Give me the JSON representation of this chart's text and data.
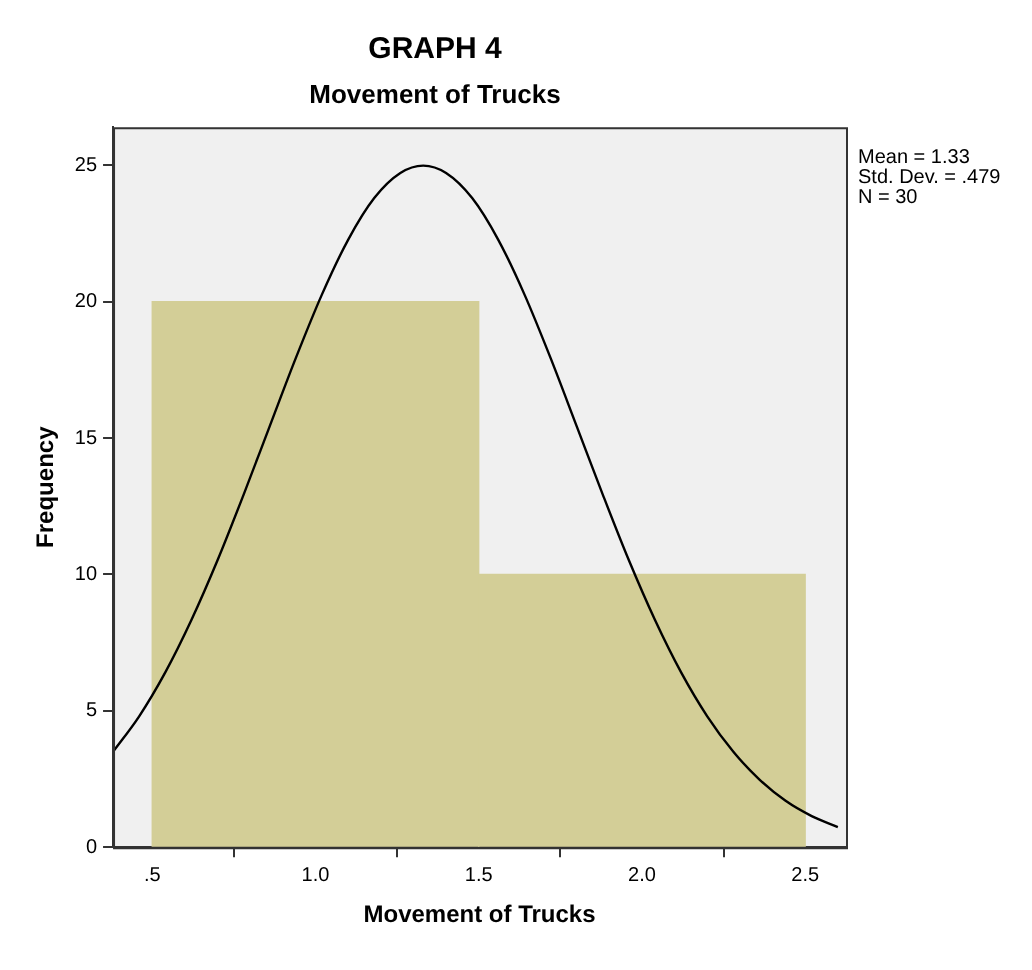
{
  "chart_data": {
    "type": "histogram",
    "title": "GRAPH 4",
    "subtitle": "Movement of Trucks",
    "xlabel": "Movement of Trucks",
    "ylabel": "Frequency",
    "bins": [
      0.5,
      1.5,
      2.5
    ],
    "values": [
      20,
      10
    ],
    "color": "#d3ce97",
    "series": [
      {
        "type": "line",
        "color": "#000000",
        "x": [
          0.38,
          0.46,
          0.54,
          0.62,
          0.7,
          0.78,
          0.86,
          0.94,
          1.02,
          1.1,
          1.18,
          1.26,
          1.33,
          1.4,
          1.48,
          1.56,
          1.64,
          1.72,
          1.8,
          1.88,
          1.96,
          2.04,
          2.12,
          2.2,
          2.28,
          2.36,
          2.44,
          2.52,
          2.6
        ],
        "values": [
          3.5,
          4.8,
          6.41,
          8.33,
          10.52,
          12.93,
          15.44,
          17.94,
          20.27,
          22.27,
          23.8,
          24.72,
          24.99,
          24.72,
          23.8,
          22.27,
          20.27,
          17.94,
          15.44,
          12.93,
          10.52,
          8.33,
          6.41,
          4.8,
          3.5,
          2.48,
          1.7,
          1.14,
          0.74
        ]
      }
    ],
    "xlim": [
      0.38,
      2.625
    ],
    "xticks": [
      {
        "value": 0.5,
        "label": ".5"
      },
      {
        "value": 1,
        "label": "1.0"
      },
      {
        "value": 1.5,
        "label": "1.5"
      },
      {
        "value": 2,
        "label": "2.0"
      },
      {
        "value": 2.5,
        "label": "2.5"
      }
    ],
    "ylim": [
      0,
      26.4
    ],
    "yticks": [
      0,
      5,
      10,
      15,
      20,
      25
    ],
    "annotations": [
      "Mean = 1.33",
      "Std. Dev. = .479",
      "N = 30"
    ],
    "grid": false,
    "legend": false,
    "marker": "none"
  }
}
